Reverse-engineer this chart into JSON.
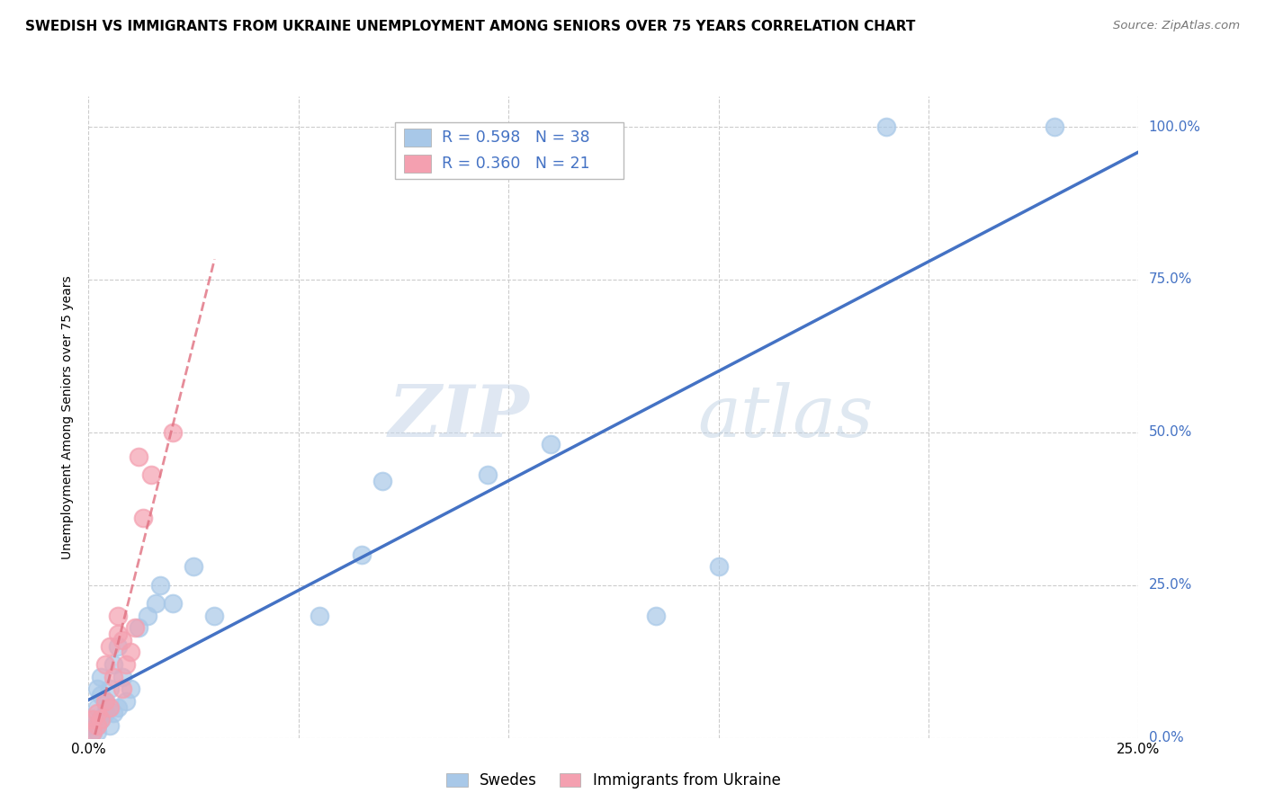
{
  "title": "SWEDISH VS IMMIGRANTS FROM UKRAINE UNEMPLOYMENT AMONG SENIORS OVER 75 YEARS CORRELATION CHART",
  "source": "Source: ZipAtlas.com",
  "ylabel": "Unemployment Among Seniors over 75 years",
  "legend_label1": "Swedes",
  "legend_label2": "Immigrants from Ukraine",
  "r_swedes": 0.598,
  "n_swedes": 38,
  "r_ukraine": 0.36,
  "n_ukraine": 21,
  "xlim": [
    0.0,
    0.25
  ],
  "ylim": [
    0.0,
    1.05
  ],
  "yticks": [
    0.0,
    0.25,
    0.5,
    0.75,
    1.0
  ],
  "ytick_labels": [
    "0.0%",
    "25.0%",
    "50.0%",
    "75.0%",
    "100.0%"
  ],
  "xticks": [
    0.0,
    0.05,
    0.1,
    0.15,
    0.2,
    0.25
  ],
  "xtick_labels": [
    "0.0%",
    "",
    "",
    "",
    "",
    "25.0%"
  ],
  "swedes_x": [
    0.001,
    0.001,
    0.001,
    0.002,
    0.002,
    0.002,
    0.002,
    0.003,
    0.003,
    0.003,
    0.004,
    0.004,
    0.005,
    0.005,
    0.005,
    0.006,
    0.006,
    0.007,
    0.007,
    0.008,
    0.009,
    0.01,
    0.012,
    0.014,
    0.016,
    0.017,
    0.02,
    0.025,
    0.03,
    0.055,
    0.065,
    0.07,
    0.095,
    0.11,
    0.135,
    0.15,
    0.19,
    0.23
  ],
  "swedes_y": [
    0.01,
    0.02,
    0.03,
    0.01,
    0.02,
    0.05,
    0.08,
    0.03,
    0.07,
    0.1,
    0.04,
    0.06,
    0.02,
    0.05,
    0.08,
    0.04,
    0.12,
    0.05,
    0.15,
    0.1,
    0.06,
    0.08,
    0.18,
    0.2,
    0.22,
    0.25,
    0.22,
    0.28,
    0.2,
    0.2,
    0.3,
    0.42,
    0.43,
    0.48,
    0.2,
    0.28,
    1.0,
    1.0
  ],
  "ukraine_x": [
    0.001,
    0.001,
    0.002,
    0.002,
    0.003,
    0.004,
    0.004,
    0.005,
    0.005,
    0.006,
    0.007,
    0.007,
    0.008,
    0.008,
    0.009,
    0.01,
    0.011,
    0.012,
    0.013,
    0.015,
    0.02
  ],
  "ukraine_y": [
    0.01,
    0.03,
    0.02,
    0.04,
    0.03,
    0.06,
    0.12,
    0.05,
    0.15,
    0.1,
    0.17,
    0.2,
    0.08,
    0.16,
    0.12,
    0.14,
    0.18,
    0.46,
    0.36,
    0.43,
    0.5
  ],
  "color_swedes": "#A8C8E8",
  "color_ukraine": "#F4A0B0",
  "color_swedes_line": "#4472C4",
  "color_ukraine_line": "#E07080",
  "watermark_zip": "ZIP",
  "watermark_atlas": "atlas",
  "background_color": "#FFFFFF",
  "grid_color": "#CCCCCC"
}
